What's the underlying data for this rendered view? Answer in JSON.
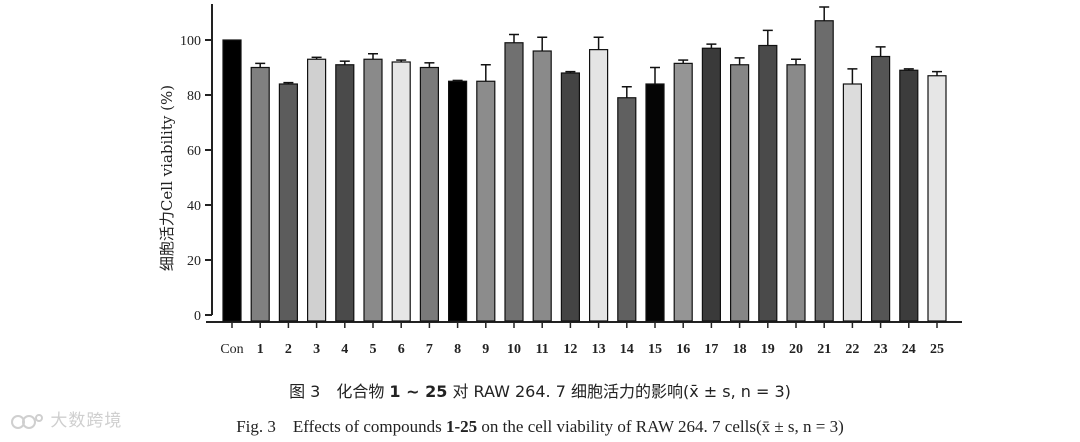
{
  "chart_data": {
    "type": "bar",
    "ylabel": "细胞活力Cell viability (%)",
    "ylim": [
      0,
      110
    ],
    "yticks": [
      0,
      20,
      40,
      60,
      80,
      100
    ],
    "grid": false,
    "categories": [
      "Con",
      "1",
      "2",
      "3",
      "4",
      "5",
      "6",
      "7",
      "8",
      "9",
      "10",
      "11",
      "12",
      "13",
      "14",
      "15",
      "16",
      "17",
      "18",
      "19",
      "20",
      "21",
      "22",
      "23",
      "24",
      "25"
    ],
    "values": [
      100,
      90,
      84,
      93,
      91,
      93,
      92,
      90,
      85,
      85,
      99,
      96,
      88,
      96.5,
      79,
      84,
      91.5,
      97,
      91,
      98,
      91,
      107,
      84,
      94,
      89,
      87
    ],
    "errors": [
      0,
      1.5,
      0.5,
      0.7,
      1.3,
      2,
      0.7,
      1.7,
      0.3,
      6,
      3,
      5,
      0.5,
      4.5,
      4,
      6,
      1.2,
      1.5,
      2.5,
      5.5,
      2,
      5,
      5.5,
      3.5,
      0.5,
      1.5
    ],
    "colors": [
      "#000000",
      "#808080",
      "#5c5c5c",
      "#d0d0d0",
      "#4a4a4a",
      "#8a8a8a",
      "#e6e6e6",
      "#7a7a7a",
      "#000000",
      "#8c8c8c",
      "#707070",
      "#8a8a8a",
      "#444444",
      "#e4e4e4",
      "#606060",
      "#050505",
      "#959595",
      "#3a3a3a",
      "#868686",
      "#4a4a4a",
      "#8a8a8a",
      "#6c6c6c",
      "#dcdcdc",
      "#555555",
      "#3c3c3c",
      "#e6e6e6"
    ]
  },
  "caption": {
    "zh_prefix": "图 3　化合物 ",
    "zh_bold": "1 ~ 25",
    "zh_suffix": " 对 RAW 264. 7 细胞活力的影响(x̄ ± s, n = 3)",
    "en_prefix": "Fig. 3　Effects of compounds ",
    "en_bold": "1-25",
    "en_suffix": " on the cell viability of RAW 264. 7 cells(x̄ ± s, n = 3)"
  },
  "watermark": "大数跨境"
}
